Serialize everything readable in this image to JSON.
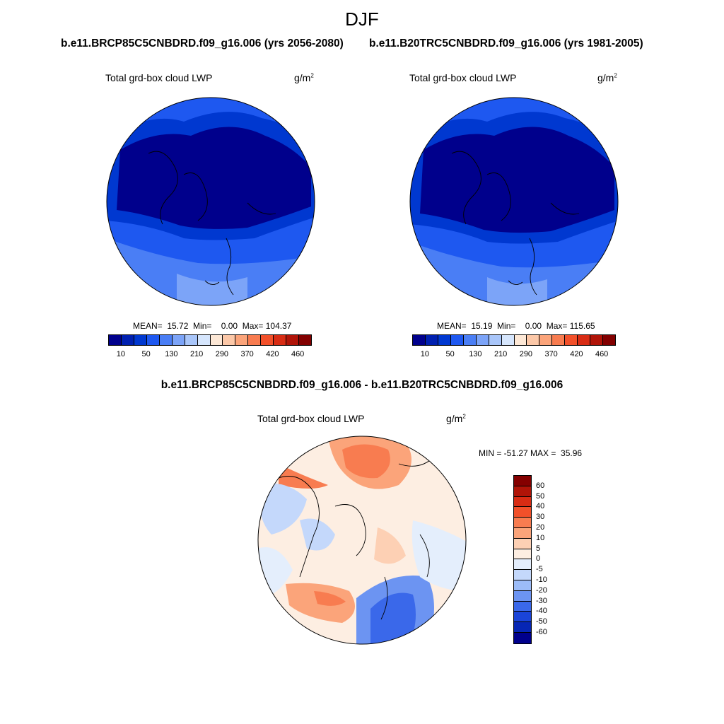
{
  "main_title": "DJF",
  "panels": [
    {
      "title": "b.e11.BRCP85C5CNBDRD.f09_g16.006 (yrs 2056-2080)",
      "label": "Total grd-box cloud LWP",
      "units": "g/m",
      "units_sup": "2",
      "stats": "MEAN=  15.72  Min=    0.00  Max= 104.37"
    },
    {
      "title": "b.e11.B20TRC5CNBDRD.f09_g16.006 (yrs 1981-2005)",
      "label": "Total grd-box cloud LWP",
      "units": "g/m",
      "units_sup": "2",
      "stats": "MEAN=  15.19  Min=    0.00  Max= 115.65"
    }
  ],
  "diff_panel": {
    "title": "b.e11.BRCP85C5CNBDRD.f09_g16.006 - b.e11.B20TRC5CNBDRD.f09_g16.006",
    "label": "Total grd-box cloud LWP",
    "units": "g/m",
    "units_sup": "2",
    "minmax": "MIN = -51.27 MAX =  35.96"
  },
  "colorbar_top": {
    "colors": [
      "#00008c",
      "#0020b0",
      "#0038d0",
      "#1e58f0",
      "#4a7ef5",
      "#7ca4f8",
      "#a9c6fa",
      "#d6e6fd",
      "#fde8d6",
      "#fcc8a8",
      "#fba47a",
      "#f87c50",
      "#f2502a",
      "#d82c14",
      "#b01408",
      "#820000"
    ],
    "tick_labels": [
      "10",
      "50",
      "130",
      "210",
      "290",
      "370",
      "420",
      "460"
    ]
  },
  "colorbar_diff": {
    "colors": [
      "#840000",
      "#b01408",
      "#d82c14",
      "#f2502a",
      "#f87c50",
      "#fba47a",
      "#fdd0b4",
      "#fdeee2",
      "#e4eefc",
      "#c4d8fb",
      "#9cbcf8",
      "#6c94f2",
      "#3a68ea",
      "#1a44d8",
      "#0626b4",
      "#00008c"
    ],
    "tick_labels": [
      "60",
      "50",
      "40",
      "30",
      "20",
      "10",
      "5",
      "0",
      "-5",
      "-10",
      "-20",
      "-30",
      "-40",
      "-50",
      "-60"
    ]
  }
}
